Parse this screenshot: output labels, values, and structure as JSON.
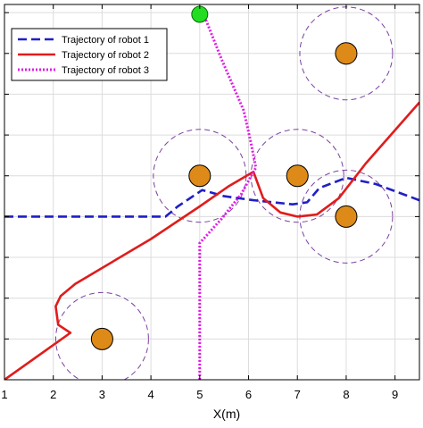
{
  "chart_data": {
    "type": "line",
    "xlabel": "X(m)",
    "ylabel": "",
    "xlim": [
      1,
      9.5
    ],
    "ylim": [
      0,
      9.2
    ],
    "x_ticks": [
      1,
      2,
      3,
      4,
      5,
      6,
      7,
      8,
      9
    ],
    "x_tick_labels": [
      "1",
      "2",
      "3",
      "4",
      "5",
      "6",
      "7",
      "8",
      "9"
    ],
    "y_gridlines": [
      1,
      2,
      3,
      4,
      5,
      6,
      7,
      8,
      9
    ],
    "grid": true,
    "legend_position": "top-left",
    "series": [
      {
        "name": "Trajectory of robot 1",
        "color": "#1f1fc8",
        "style": "dashed",
        "points": [
          [
            1.0,
            4.0
          ],
          [
            4.3,
            4.0
          ],
          [
            4.55,
            4.25
          ],
          [
            5.05,
            4.65
          ],
          [
            5.5,
            4.5
          ],
          [
            6.1,
            4.4
          ],
          [
            6.9,
            4.3
          ],
          [
            7.2,
            4.35
          ],
          [
            7.45,
            4.7
          ],
          [
            8.0,
            4.95
          ],
          [
            8.6,
            4.8
          ],
          [
            9.5,
            4.4
          ]
        ]
      },
      {
        "name": "Trajectory of robot 2",
        "color": "#e01c1c",
        "style": "solid",
        "points": [
          [
            1.0,
            0.0
          ],
          [
            2.35,
            1.15
          ],
          [
            2.1,
            1.35
          ],
          [
            2.05,
            1.8
          ],
          [
            2.15,
            2.05
          ],
          [
            2.45,
            2.35
          ],
          [
            4.0,
            3.45
          ],
          [
            5.0,
            4.25
          ],
          [
            5.6,
            4.75
          ],
          [
            6.1,
            5.1
          ],
          [
            6.3,
            4.45
          ],
          [
            6.65,
            4.1
          ],
          [
            7.0,
            4.0
          ],
          [
            7.4,
            4.05
          ],
          [
            7.85,
            4.45
          ],
          [
            8.4,
            5.3
          ],
          [
            9.5,
            6.8
          ]
        ]
      },
      {
        "name": "Trajectory of robot 3",
        "color": "#e01ce6",
        "style": "dotted",
        "points": [
          [
            5.0,
            0.0
          ],
          [
            5.0,
            3.35
          ],
          [
            5.45,
            3.95
          ],
          [
            5.85,
            4.55
          ],
          [
            6.15,
            5.2
          ],
          [
            6.05,
            5.8
          ],
          [
            5.9,
            6.6
          ],
          [
            5.45,
            7.85
          ],
          [
            5.1,
            8.9
          ]
        ]
      }
    ],
    "obstacles": [
      {
        "center": [
          3.0,
          1.0
        ],
        "inner_radius": 0.2,
        "safety_radius": 0.95
      },
      {
        "center": [
          5.0,
          5.0
        ],
        "inner_radius": 0.2,
        "safety_radius": 0.95
      },
      {
        "center": [
          7.0,
          5.0
        ],
        "inner_radius": 0.2,
        "safety_radius": 0.95
      },
      {
        "center": [
          8.0,
          8.0
        ],
        "inner_radius": 0.2,
        "safety_radius": 0.95
      },
      {
        "center": [
          8.0,
          4.0
        ],
        "inner_radius": 0.2,
        "safety_radius": 0.95
      }
    ],
    "goal_marker": {
      "position": [
        5.0,
        9.0
      ],
      "color": "#22dd22"
    },
    "obstacle_fill_color": "#dd8a18",
    "obstacle_edge_color": "#7a40a0"
  }
}
